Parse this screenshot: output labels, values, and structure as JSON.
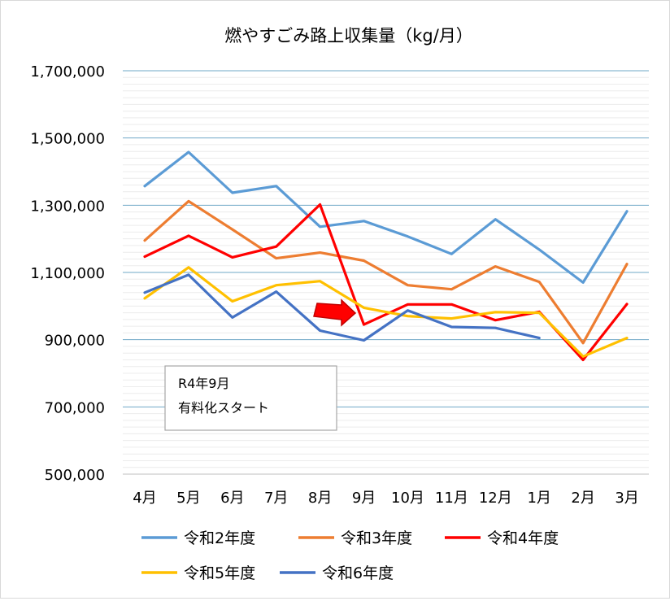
{
  "chart_data": {
    "type": "line",
    "title": "燃やすごみ路上収集量（kg/月）",
    "xlabel": "",
    "ylabel": "",
    "categories": [
      "4月",
      "5月",
      "6月",
      "7月",
      "8月",
      "9月",
      "10月",
      "11月",
      "12月",
      "1月",
      "2月",
      "3月"
    ],
    "ylim": [
      500000,
      1700000
    ],
    "yticks": [
      500000,
      700000,
      900000,
      1100000,
      1300000,
      1500000,
      1700000
    ],
    "ytick_labels": [
      "500,000",
      "700,000",
      "900,000",
      "1,100,000",
      "1,300,000",
      "1,500,000",
      "1,700,000"
    ],
    "grid": true,
    "minor_grid": true,
    "legend_position": "bottom",
    "series": [
      {
        "name": "令和2年度",
        "color": "#5b9bd5",
        "values": [
          1357000,
          1458000,
          1337000,
          1357000,
          1236000,
          1253000,
          1207000,
          1155000,
          1258000,
          1168000,
          1070000,
          1282000
        ]
      },
      {
        "name": "令和3年度",
        "color": "#ed7d31",
        "values": [
          1195000,
          1312000,
          1228000,
          1142000,
          1159000,
          1135000,
          1062000,
          1050000,
          1118000,
          1072000,
          890000,
          1125000
        ]
      },
      {
        "name": "令和4年度",
        "color": "#ff0000",
        "values": [
          1147000,
          1209000,
          1145000,
          1177000,
          1302000,
          945000,
          1005000,
          1005000,
          958000,
          983000,
          840000,
          1006000
        ]
      },
      {
        "name": "令和5年度",
        "color": "#ffc000",
        "values": [
          1023000,
          1115000,
          1014000,
          1062000,
          1074000,
          995000,
          970000,
          963000,
          982000,
          980000,
          850000,
          905000
        ]
      },
      {
        "name": "令和6年度",
        "color": "#4472c4",
        "values": [
          1040000,
          1093000,
          966000,
          1043000,
          927000,
          898000,
          987000,
          938000,
          935000,
          905000,
          null,
          null
        ]
      }
    ],
    "annotations": [
      {
        "type": "arrow",
        "color": "#ff0000",
        "target": "9月",
        "points_to_series": "令和4年度"
      },
      {
        "type": "textbox",
        "lines": [
          "R4年9月",
          "有料化スタート"
        ]
      }
    ]
  }
}
